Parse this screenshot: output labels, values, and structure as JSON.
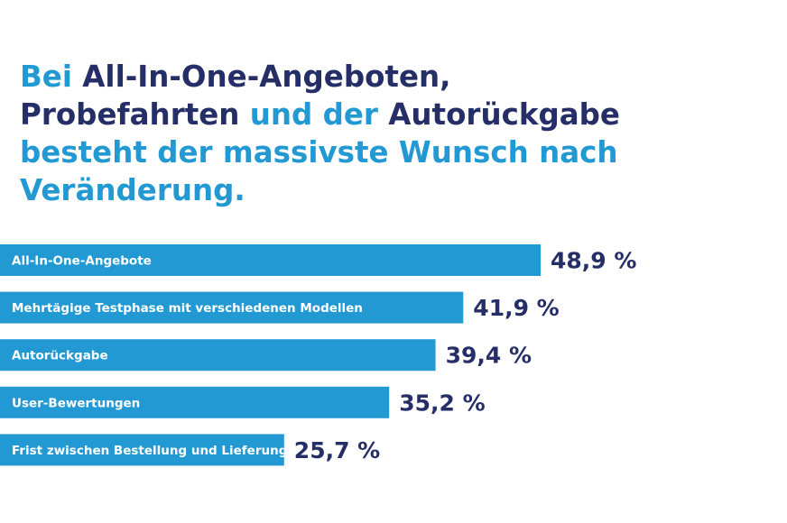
{
  "colors": {
    "accent": "#2399d3",
    "dark": "#252e67",
    "bar_label": "#ffffff",
    "background": "#ffffff"
  },
  "chart_data": {
    "type": "bar",
    "orientation": "horizontal",
    "title_segments": [
      {
        "text": "Bei ",
        "color": "#2399d3"
      },
      {
        "text": "All-In-One-Angeboten,",
        "color": "#252e67"
      },
      {
        "text": "\n",
        "color": "#252e67"
      },
      {
        "text": "Probefahrten ",
        "color": "#252e67"
      },
      {
        "text": "und der ",
        "color": "#2399d3"
      },
      {
        "text": "Autorückgabe",
        "color": "#252e67"
      },
      {
        "text": "\n",
        "color": "#252e67"
      },
      {
        "text": "besteht der massivste Wunsch nach",
        "color": "#2399d3"
      },
      {
        "text": "\n",
        "color": "#2399d3"
      },
      {
        "text": "Veränderung.",
        "color": "#2399d3"
      }
    ],
    "categories": [
      "All-In-One-Angebote",
      "Mehrtägige Testphase mit verschiedenen Modellen",
      "Autorückgabe",
      "User-Bewertungen",
      "Frist zwischen Bestellung und Lieferung"
    ],
    "values": [
      48.9,
      41.9,
      39.4,
      35.2,
      25.7
    ],
    "value_labels": [
      "48,9 %",
      "41,9 %",
      "39,4 %",
      "35,2 %",
      "25,7 %"
    ],
    "unit": "%",
    "xlabel": "",
    "ylabel": "",
    "grid": false,
    "legend": "none"
  }
}
